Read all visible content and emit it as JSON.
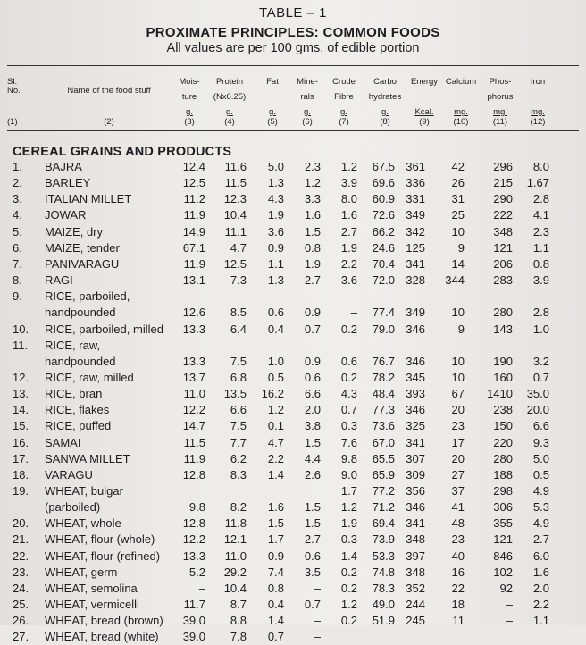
{
  "header": {
    "table_label": "TABLE – 1",
    "title": "PROXIMATE PRINCIPLES: COMMON FOODS",
    "subtitle": "All values are per 100 gms. of edible portion"
  },
  "columns": [
    {
      "key": "sl",
      "l1": "Sl.",
      "l2": "No.",
      "l3": "",
      "num": "(1)"
    },
    {
      "key": "name",
      "l1": "",
      "l2": "Name of the food stuff",
      "l3": "",
      "num": "(2)"
    },
    {
      "key": "moisture",
      "l1": "Mois-",
      "l2": "ture",
      "l3": "g.",
      "num": "(3)"
    },
    {
      "key": "protein",
      "l1": "Protein",
      "l2": "(Nx6.25)",
      "l3": "g.",
      "num": "(4)"
    },
    {
      "key": "fat",
      "l1": "Fat",
      "l2": "",
      "l3": "g.",
      "num": "(5)"
    },
    {
      "key": "minerals",
      "l1": "Mine-",
      "l2": "rals",
      "l3": "g.",
      "num": "(6)"
    },
    {
      "key": "fibre",
      "l1": "Crude",
      "l2": "Fibre",
      "l3": "g.",
      "num": "(7)"
    },
    {
      "key": "carbo",
      "l1": "Carbo",
      "l2": "hydrates",
      "l3": "g.",
      "num": "(8)"
    },
    {
      "key": "energy",
      "l1": "Energy",
      "l2": "",
      "l3": "Kcal.",
      "num": "(9)"
    },
    {
      "key": "calcium",
      "l1": "Calcium",
      "l2": "",
      "l3": "mg.",
      "num": "(10)"
    },
    {
      "key": "phosphorus",
      "l1": "Phos-",
      "l2": "phorus",
      "l3": "mg.",
      "num": "(11)"
    },
    {
      "key": "iron",
      "l1": "Iron",
      "l2": "",
      "l3": "mg.",
      "num": "(12)"
    }
  ],
  "section_title": "CEREAL GRAINS AND PRODUCTS",
  "rows": [
    {
      "sl": "1.",
      "name": "BAJRA",
      "v": [
        "12.4",
        "11.6",
        "5.0",
        "2.3",
        "1.2",
        "67.5",
        "361",
        "42",
        "296",
        "8.0"
      ]
    },
    {
      "sl": "2.",
      "name": "BARLEY",
      "v": [
        "12.5",
        "11.5",
        "1.3",
        "1.2",
        "3.9",
        "69.6",
        "336",
        "26",
        "215",
        "1.67"
      ]
    },
    {
      "sl": "3.",
      "name": "ITALIAN MILLET",
      "v": [
        "11.2",
        "12.3",
        "4.3",
        "3.3",
        "8.0",
        "60.9",
        "331",
        "31",
        "290",
        "2.8"
      ]
    },
    {
      "sl": "4.",
      "name": "JOWAR",
      "v": [
        "11.9",
        "10.4",
        "1.9",
        "1.6",
        "1.6",
        "72.6",
        "349",
        "25",
        "222",
        "4.1"
      ]
    },
    {
      "sl": "5.",
      "name": "MAIZE, dry",
      "v": [
        "14.9",
        "11.1",
        "3.6",
        "1.5",
        "2.7",
        "66.2",
        "342",
        "10",
        "348",
        "2.3"
      ]
    },
    {
      "sl": "6.",
      "name": "MAIZE, tender",
      "v": [
        "67.1",
        "4.7",
        "0.9",
        "0.8",
        "1.9",
        "24.6",
        "125",
        "9",
        "121",
        "1.1"
      ]
    },
    {
      "sl": "7.",
      "name": "PANIVARAGU",
      "v": [
        "11.9",
        "12.5",
        "1.1",
        "1.9",
        "2.2",
        "70.4",
        "341",
        "14",
        "206",
        "0.8"
      ]
    },
    {
      "sl": "8.",
      "name": "RAGI",
      "v": [
        "13.1",
        "7.3",
        "1.3",
        "2.7",
        "3.6",
        "72.0",
        "328",
        "344",
        "283",
        "3.9"
      ]
    },
    {
      "sl": "9.",
      "name": "RICE, parboiled,",
      "v": [
        "",
        "",
        "",
        "",
        "",
        "",
        "",
        "",
        "",
        ""
      ]
    },
    {
      "sl": "",
      "name": "handpounded",
      "v": [
        "12.6",
        "8.5",
        "0.6",
        "0.9",
        "–",
        "77.4",
        "349",
        "10",
        "280",
        "2.8"
      ]
    },
    {
      "sl": "10.",
      "name": "RICE, parboiled, milled",
      "v": [
        "13.3",
        "6.4",
        "0.4",
        "0.7",
        "0.2",
        "79.0",
        "346",
        "9",
        "143",
        "1.0"
      ]
    },
    {
      "sl": "11.",
      "name": "RICE, raw,",
      "v": [
        "",
        "",
        "",
        "",
        "",
        "",
        "",
        "",
        "",
        ""
      ]
    },
    {
      "sl": "",
      "name": "handpounded",
      "v": [
        "13.3",
        "7.5",
        "1.0",
        "0.9",
        "0.6",
        "76.7",
        "346",
        "10",
        "190",
        "3.2"
      ]
    },
    {
      "sl": "12.",
      "name": "RICE, raw, milled",
      "v": [
        "13.7",
        "6.8",
        "0.5",
        "0.6",
        "0.2",
        "78.2",
        "345",
        "10",
        "160",
        "0.7"
      ]
    },
    {
      "sl": "13.",
      "name": "RICE, bran",
      "v": [
        "11.0",
        "13.5",
        "16.2",
        "6.6",
        "4.3",
        "48.4",
        "393",
        "67",
        "1410",
        "35.0"
      ]
    },
    {
      "sl": "14.",
      "name": "RICE, flakes",
      "v": [
        "12.2",
        "6.6",
        "1.2",
        "2.0",
        "0.7",
        "77.3",
        "346",
        "20",
        "238",
        "20.0"
      ]
    },
    {
      "sl": "15.",
      "name": "RICE, puffed",
      "v": [
        "14.7",
        "7.5",
        "0.1",
        "3.8",
        "0.3",
        "73.6",
        "325",
        "23",
        "150",
        "6.6"
      ]
    },
    {
      "sl": "16.",
      "name": "SAMAI",
      "v": [
        "11.5",
        "7.7",
        "4.7",
        "1.5",
        "7.6",
        "67.0",
        "341",
        "17",
        "220",
        "9.3"
      ]
    },
    {
      "sl": "17.",
      "name": "SANWA MILLET",
      "v": [
        "11.9",
        "6.2",
        "2.2",
        "4.4",
        "9.8",
        "65.5",
        "307",
        "20",
        "280",
        "5.0"
      ]
    },
    {
      "sl": "18.",
      "name": "VARAGU",
      "v": [
        "12.8",
        "8.3",
        "1.4",
        "2.6",
        "9.0",
        "65.9",
        "309",
        "27",
        "188",
        "0.5"
      ]
    },
    {
      "sl": "19.",
      "name": "WHEAT, bulgar",
      "v": [
        "",
        "",
        "",
        "",
        "1.7",
        "77.2",
        "356",
        "37",
        "298",
        "4.9"
      ]
    },
    {
      "sl": "",
      "name": "(parboiled)",
      "v": [
        "9.8",
        "8.2",
        "1.6",
        "1.5",
        "1.2",
        "71.2",
        "346",
        "41",
        "306",
        "5.3"
      ]
    },
    {
      "sl": "20.",
      "name": "WHEAT, whole",
      "v": [
        "12.8",
        "11.8",
        "1.5",
        "1.5",
        "1.9",
        "69.4",
        "341",
        "48",
        "355",
        "4.9"
      ]
    },
    {
      "sl": "21.",
      "name": "WHEAT, flour (whole)",
      "v": [
        "12.2",
        "12.1",
        "1.7",
        "2.7",
        "0.3",
        "73.9",
        "348",
        "23",
        "121",
        "2.7"
      ]
    },
    {
      "sl": "22.",
      "name": "WHEAT, flour (refined)",
      "v": [
        "13.3",
        "11.0",
        "0.9",
        "0.6",
        "1.4",
        "53.3",
        "397",
        "40",
        "846",
        "6.0"
      ]
    },
    {
      "sl": "23.",
      "name": "WHEAT, germ",
      "v": [
        "5.2",
        "29.2",
        "7.4",
        "3.5",
        "0.2",
        "74.8",
        "348",
        "16",
        "102",
        "1.6"
      ]
    },
    {
      "sl": "24.",
      "name": "WHEAT, semolina",
      "v": [
        "–",
        "10.4",
        "0.8",
        "–",
        "0.2",
        "78.3",
        "352",
        "22",
        "92",
        "2.0"
      ]
    },
    {
      "sl": "25.",
      "name": "WHEAT, vermicelli",
      "v": [
        "11.7",
        "8.7",
        "0.4",
        "0.7",
        "1.2",
        "49.0",
        "244",
        "18",
        "–",
        "2.2"
      ]
    },
    {
      "sl": "26.",
      "name": "WHEAT, bread (brown)",
      "v": [
        "39.0",
        "8.8",
        "1.4",
        "–",
        "0.2",
        "51.9",
        "245",
        "11",
        "–",
        "1.1"
      ]
    },
    {
      "sl": "27.",
      "name": "WHEAT, bread (white)",
      "v": [
        "39.0",
        "7.8",
        "0.7",
        "–",
        "",
        "",
        "",
        "",
        "",
        ""
      ]
    }
  ]
}
